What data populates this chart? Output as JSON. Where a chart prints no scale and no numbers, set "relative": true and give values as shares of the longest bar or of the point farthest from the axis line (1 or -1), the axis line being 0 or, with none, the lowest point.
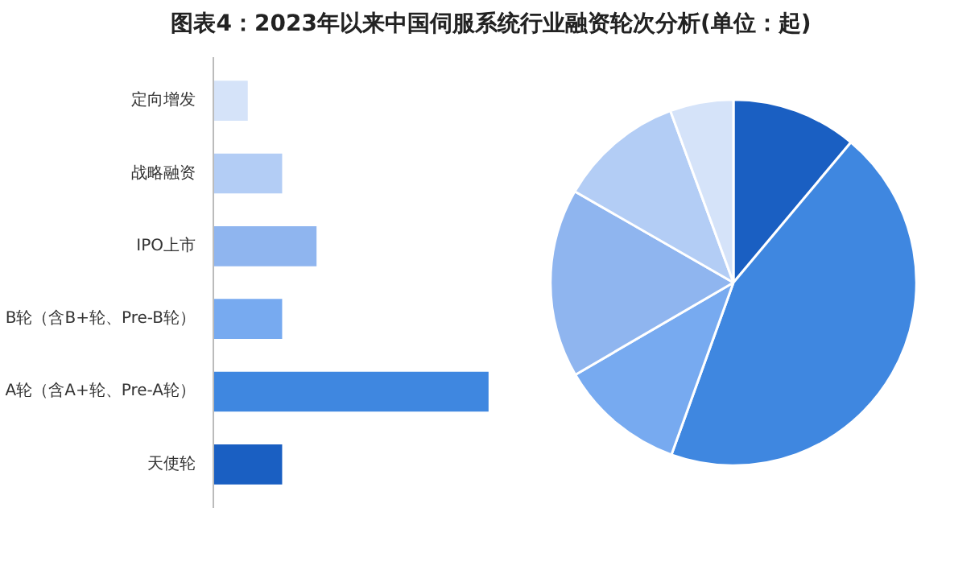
{
  "chart_data": [
    {
      "type": "bar",
      "title": "图表4：2023年以来中国伺服系统行业融资轮次分析(单位：起)",
      "orientation": "horizontal",
      "relative": true,
      "categories": [
        "定向增发",
        "战略融资",
        "IPO上市",
        "B轮（含B+轮、Pre-B轮）",
        "A轮（含A+轮、Pre-A轮）",
        "天使轮"
      ],
      "values": [
        0.125,
        0.25,
        0.375,
        0.25,
        1,
        0.25
      ],
      "colors": [
        "#d5e3f9",
        "#b3cdf5",
        "#8fb5ef",
        "#77aaf0",
        "#3f87e0",
        "#1a5fc2"
      ]
    },
    {
      "type": "pie",
      "categories": [
        null,
        null,
        null,
        null,
        null,
        null
      ],
      "values": [
        11.1,
        44.4,
        11.1,
        16.7,
        11.1,
        5.6
      ],
      "colors": [
        "#1a5fc2",
        "#3f87e0",
        "#77aaf0",
        "#8fb5ef",
        "#b3cdf5",
        "#d5e3f9"
      ]
    }
  ]
}
